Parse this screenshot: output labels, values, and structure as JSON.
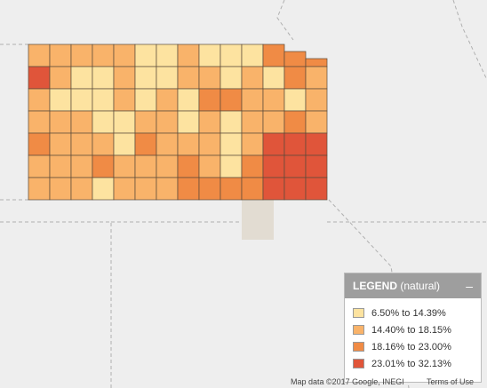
{
  "legend": {
    "title": "LEGEND",
    "subtitle": "(natural)",
    "items": [
      {
        "label": "6.50% to 14.39%",
        "color": "#fde3a0"
      },
      {
        "label": "14.40% to 18.15%",
        "color": "#f9b36a"
      },
      {
        "label": "18.16% to 23.00%",
        "color": "#f08b45"
      },
      {
        "label": "23.01% to 32.13%",
        "color": "#e0553a"
      }
    ]
  },
  "attribution": "Map data ©2017 Google, INEGI",
  "terms": "Terms of Use"
}
